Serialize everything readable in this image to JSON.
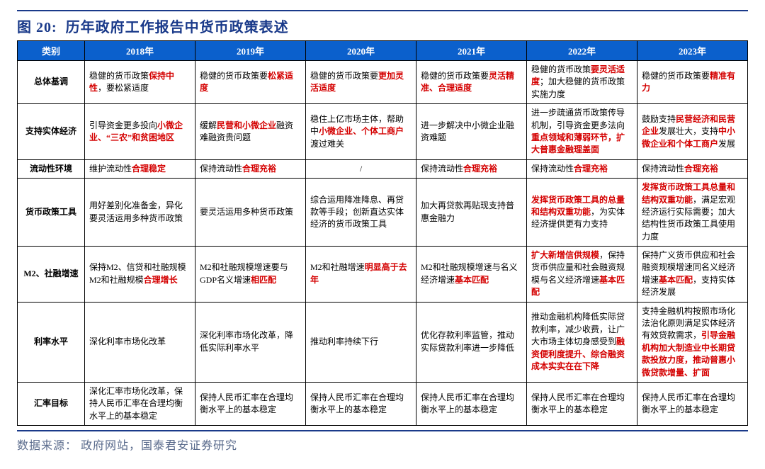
{
  "figure_label": "图 20:",
  "figure_title": "历年政府工作报告中货币政策表述",
  "header_color": "#0b60cc",
  "highlight_color": "#d40000",
  "border_color": "#000000",
  "title_color": "#1a3a8a",
  "column_headers": [
    "类别",
    "2018年",
    "2019年",
    "2020年",
    "2021年",
    "2022年",
    "2023年"
  ],
  "rows": [
    {
      "label": "总体基调",
      "cells": [
        [
          [
            "black",
            "稳健的货币政策"
          ],
          [
            "red",
            "保持中性"
          ],
          [
            "black",
            "，要松紧适度"
          ]
        ],
        [
          [
            "black",
            "稳健的货币政策要"
          ],
          [
            "red",
            "松紧适度"
          ]
        ],
        [
          [
            "black",
            "稳健的货币政策要"
          ],
          [
            "red",
            "更加灵活适度"
          ]
        ],
        [
          [
            "black",
            "稳健的货币政策要"
          ],
          [
            "red",
            "灵活精准、合理适度"
          ]
        ],
        [
          [
            "black",
            "稳健的货币政策"
          ],
          [
            "red",
            "要灵活适度"
          ],
          [
            "black",
            "；加大稳健的货币政策实施力度"
          ]
        ],
        [
          [
            "black",
            "稳健的货币政策要"
          ],
          [
            "red",
            "精准有力"
          ]
        ]
      ]
    },
    {
      "label": "支持实体经济",
      "cells": [
        [
          [
            "black",
            "引导资金更多投向"
          ],
          [
            "red",
            "小微企业、“三农”和贫困地区"
          ]
        ],
        [
          [
            "black",
            "缓解"
          ],
          [
            "red",
            "民营和小微企业"
          ],
          [
            "black",
            "融资难融资贵问题"
          ]
        ],
        [
          [
            "black",
            "稳住上亿市场主体，帮助中"
          ],
          [
            "red",
            "小微企业、个体工商户"
          ],
          [
            "black",
            "渡过难关"
          ]
        ],
        [
          [
            "black",
            "进一步解决中小微企业融资难题"
          ]
        ],
        [
          [
            "black",
            "进一步疏通货币政策传导机制，引导资金更多法向"
          ],
          [
            "red",
            "重点领域和薄弱环节，扩大普惠金融理盖面"
          ]
        ],
        [
          [
            "black",
            "鼓励支持"
          ],
          [
            "red",
            "民营经济和民营企业"
          ],
          [
            "black",
            "发展壮大，支持"
          ],
          [
            "red",
            "中小微企业和个体工商户"
          ],
          [
            "black",
            "发展"
          ]
        ]
      ]
    },
    {
      "label": "流动性环境",
      "cells": [
        [
          [
            "black",
            "维护流动性"
          ],
          [
            "red",
            "合理稳定"
          ]
        ],
        [
          [
            "black",
            "保持流动性"
          ],
          [
            "red",
            "合理充裕"
          ]
        ],
        [
          [
            "black",
            "/"
          ]
        ],
        [
          [
            "black",
            "保持流动性"
          ],
          [
            "red",
            "合理充裕"
          ]
        ],
        [
          [
            "black",
            "保持流动性"
          ],
          [
            "red",
            "合理充裕"
          ]
        ],
        [
          [
            "black",
            "保持流动性"
          ],
          [
            "red",
            "合理充裕"
          ]
        ]
      ]
    },
    {
      "label": "货币政策工具",
      "cells": [
        [
          [
            "black",
            "用好差别化准备金，异化 要灵活运用多种货币政策"
          ]
        ],
        [
          [
            "black",
            "要灵活运用多种货币政策"
          ]
        ],
        [
          [
            "black",
            "综合运用降准降息、再贷款等手段；创新直达实体经济的货币政策工具"
          ]
        ],
        [
          [
            "black",
            "加大再贷款再贴现支持普惠金融力"
          ]
        ],
        [
          [
            "red",
            "发挥货币政策工具的总量和结构双重功能"
          ],
          [
            "black",
            "，为实体经济提供更有力支持"
          ]
        ],
        [
          [
            "red",
            "发挥货币政策工具总量和结构双重功能"
          ],
          [
            "black",
            "，满足宏观经济运行实际需要；加大结构性货币政策工具使用力度"
          ]
        ]
      ]
    },
    {
      "label": "M2、社融增速",
      "cells": [
        [
          [
            "black",
            "保持M2、信贷和社融规模M2和社融规模"
          ],
          [
            "red",
            "合理增长"
          ]
        ],
        [
          [
            "black",
            "M2和社融规模增速要与GDP名义增速"
          ],
          [
            "red",
            "相匹配"
          ]
        ],
        [
          [
            "black",
            "M2和社融增速"
          ],
          [
            "red",
            "明显高于去年"
          ]
        ],
        [
          [
            "black",
            "M2和社融规模增速与名义经济增速"
          ],
          [
            "red",
            "基本匹配"
          ]
        ],
        [
          [
            "red",
            "扩大新增信供规模"
          ],
          [
            "black",
            "，保持货币供应量和社会融资规模与名义经济增速"
          ],
          [
            "red",
            "基本匹配"
          ]
        ],
        [
          [
            "black",
            "保持广义货币供应和社会融资规模增速同名义经济增速"
          ],
          [
            "red",
            "基本匹配"
          ],
          [
            "black",
            "，支持实体经济发展"
          ]
        ]
      ]
    },
    {
      "label": "利率水平",
      "cells": [
        [
          [
            "black",
            "深化利率市场化改革"
          ]
        ],
        [
          [
            "black",
            "深化利率市场化改革，降低实际利率水平"
          ]
        ],
        [
          [
            "black",
            "推动利率持续下行"
          ]
        ],
        [
          [
            "black",
            "优化存款利率监管，推动实际贷款利率进一步降低"
          ]
        ],
        [
          [
            "black",
            "推动金融机构降低实际贷款利率，减少收费，让广大市场主体切身感受到"
          ],
          [
            "red",
            "融资便利度提升、综合融资成本实实在在下降"
          ]
        ],
        [
          [
            "black",
            "支持金融机构按照市场化法治化原则满足实体经济有效贷款需求，"
          ],
          [
            "red",
            "引导金融机构加大制造业中长期贷款投放力度，推动普惠小微贷款增量、扩面"
          ]
        ]
      ]
    },
    {
      "label": "汇率目标",
      "cells": [
        [
          [
            "black",
            "深化汇率市场化改革，保持人民币汇率在合理均衡水平上的基本稳定"
          ]
        ],
        [
          [
            "black",
            "保持人民币汇率在合理均衡水平上的基本稳定"
          ]
        ],
        [
          [
            "black",
            "保持人民币汇率在合理均衡水平上的基本稳定"
          ]
        ],
        [
          [
            "black",
            "保持人民币汇率在合理均衡水平上的基本稳定"
          ]
        ],
        [
          [
            "black",
            "保持人民币汇率在合理均衡水平上的基本稳定"
          ]
        ],
        [
          [
            "black",
            "保持人民币汇率在合理均衡水平上的基本稳定"
          ]
        ]
      ]
    }
  ],
  "source_label": "数据来源：",
  "source_text": "政府网站，国泰君安证券研究"
}
